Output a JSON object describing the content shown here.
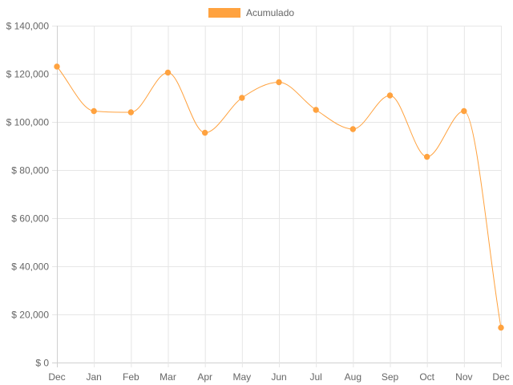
{
  "chart_data": {
    "type": "line",
    "categories": [
      "Dec",
      "Jan",
      "Feb",
      "Mar",
      "Apr",
      "May",
      "Jun",
      "Jul",
      "Aug",
      "Sep",
      "Oct",
      "Nov",
      "Dec"
    ],
    "series": [
      {
        "name": "Acumulado",
        "color": "#FFA23F",
        "values": [
          123000,
          104500,
          104000,
          120500,
          95500,
          110000,
          116500,
          105000,
          97000,
          111000,
          85500,
          104500,
          14500
        ]
      }
    ],
    "y_tick_labels": [
      "$ 0",
      "$ 20,000",
      "$ 40,000",
      "$ 60,000",
      "$ 80,000",
      "$ 100,000",
      "$ 120,000",
      "$ 140,000"
    ],
    "ylim": [
      0,
      140000
    ],
    "y_step": 20000,
    "grid": true,
    "legend_position": "top-center",
    "smooth": true
  }
}
